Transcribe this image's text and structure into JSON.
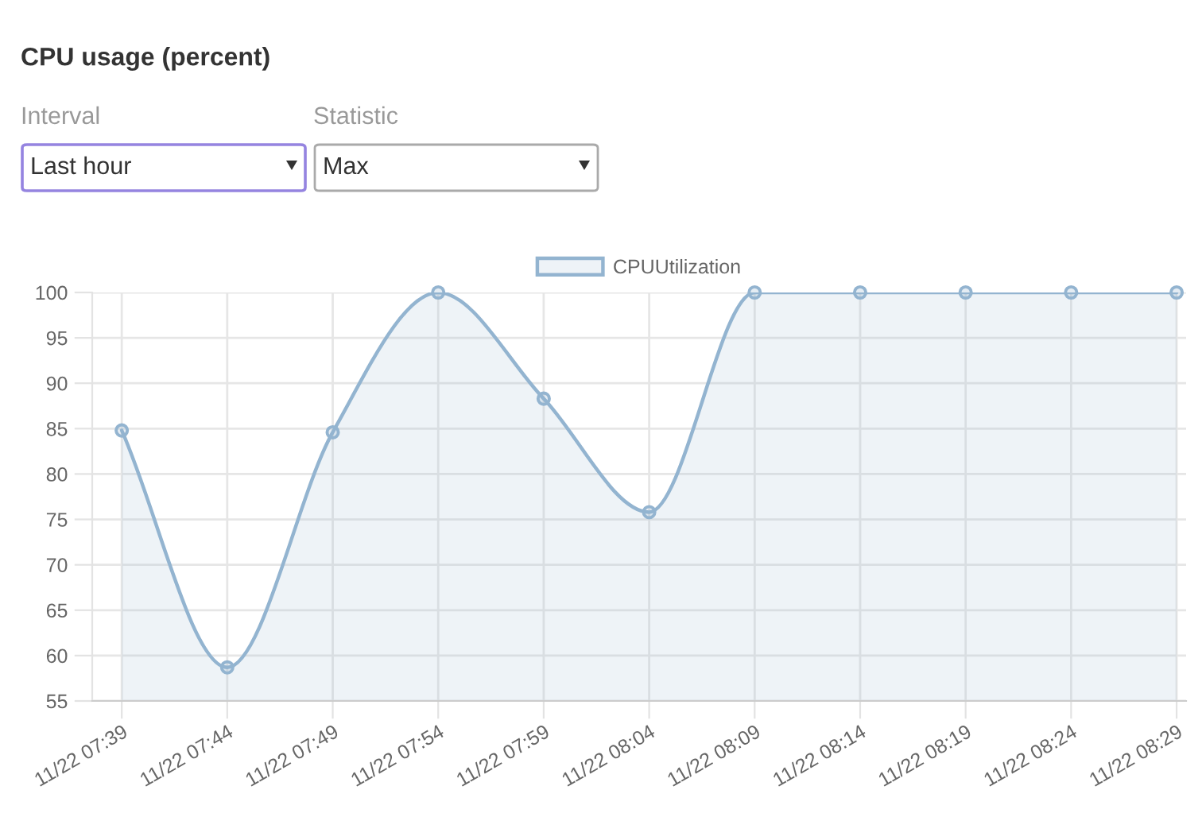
{
  "chart_data": {
    "type": "area",
    "title": "CPU usage (percent)",
    "annotations": [
      "Interval",
      "Last hour",
      "Statistic",
      "Max"
    ],
    "categories": [
      "11/22 07:39",
      "11/22 07:44",
      "11/22 07:49",
      "11/22 07:54",
      "11/22 07:59",
      "11/22 08:04",
      "11/22 08:09",
      "11/22 08:14",
      "11/22 08:19",
      "11/22 08:24",
      "11/22 08:29"
    ],
    "series": [
      {
        "name": "CPUUtilization",
        "color": "#93b4d0",
        "values": [
          84.8,
          58.7,
          84.6,
          100,
          88.3,
          75.8,
          100,
          100,
          100,
          100,
          100
        ]
      }
    ],
    "ylim": [
      55,
      100
    ],
    "yticks": [
      55,
      60,
      65,
      70,
      75,
      80,
      85,
      90,
      95,
      100
    ],
    "grid": true,
    "legend": "top",
    "marker": "circle",
    "line_style": "solid"
  }
}
